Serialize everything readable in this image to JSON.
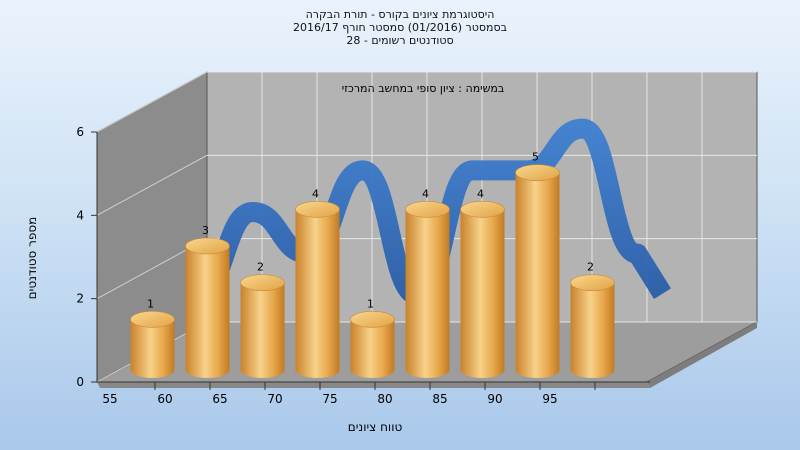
{
  "chart_data": {
    "type": "bar",
    "title": "היסטוגרמת ציונים בקורס - תורת הבקרה",
    "subtitle_1": "בסמסטר  (01/2016)  סמסטר חורף  2016/17",
    "subtitle_2": "סטודנטים רשומים - 28",
    "annotation": "במשימה : ציון סופי במחשב המרכזי",
    "xlabel": "טווח ציונים",
    "ylabel": "מספר סטודנטים",
    "categories": [
      "55",
      "60",
      "65",
      "70",
      "75",
      "80",
      "85",
      "90",
      "95"
    ],
    "values": [
      1,
      3,
      2,
      4,
      1,
      4,
      4,
      5,
      2
    ],
    "yticks": [
      "0",
      "2",
      "4",
      "6"
    ],
    "ylim": [
      0,
      6
    ],
    "grid": true,
    "colors": {
      "bar": "#e8a94a",
      "bar_top": "#f6cc7a",
      "ribbon": "#2f6bbf",
      "wall_left": "#8c8c8c",
      "wall_back": "#b3b3b3",
      "floor": "#9b9b9b"
    }
  }
}
